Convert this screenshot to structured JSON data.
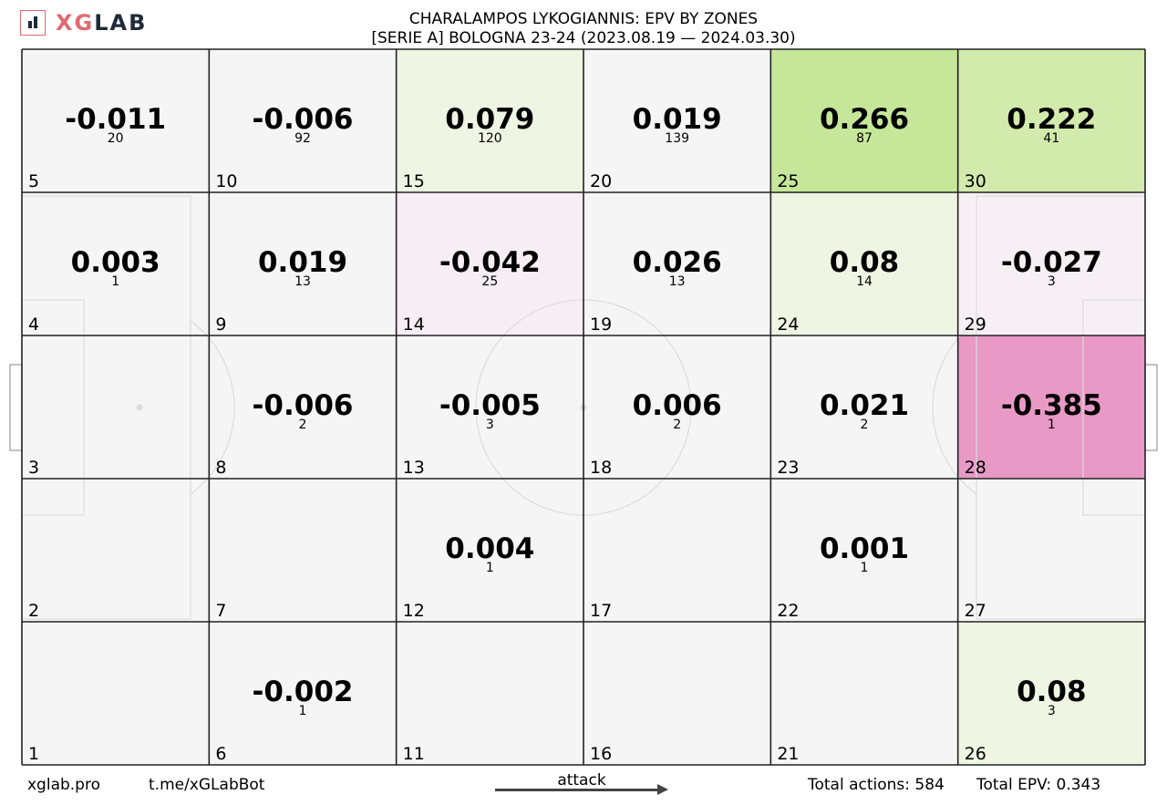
{
  "header": {
    "logo": {
      "xg": "XG",
      "lab": "LAB"
    },
    "title_line1": "CHARALAMPOS LYKOGIANNIS: EPV BY ZONES",
    "title_line2": "[SERIE A] BOLOGNA 23-24 (2023.08.19 — 2024.03.30)"
  },
  "footer": {
    "site": "xglab.pro",
    "bot": "t.me/xGLabBot",
    "attack_label": "attack",
    "total_actions": "Total actions: 584",
    "total_epv": "Total EPV: 0.343"
  },
  "colors": {
    "neutral": "#f5f5f5",
    "pale_green": "#eef5e2",
    "light_green": "#d2ebac",
    "green": "#c6e79a",
    "pale_pink": "#f7eef5",
    "pale_pink2": "#f6f0f5",
    "pink": "#e899c6",
    "grid_line": "#222222",
    "pitch_line": "#dcdcdc"
  },
  "chart_data": {
    "type": "heatmap",
    "title": "CHARALAMPOS LYKOGIANNIS: EPV BY ZONES",
    "subtitle": "[SERIE A] BOLOGNA 23-24 (2023.08.19 — 2024.03.30)",
    "columns": 6,
    "rows": 5,
    "zones": [
      {
        "zone": 5,
        "epv": "-0.011",
        "count": "20",
        "color": "neutral"
      },
      {
        "zone": 10,
        "epv": "-0.006",
        "count": "92",
        "color": "neutral"
      },
      {
        "zone": 15,
        "epv": "0.079",
        "count": "120",
        "color": "pale_green"
      },
      {
        "zone": 20,
        "epv": "0.019",
        "count": "139",
        "color": "neutral"
      },
      {
        "zone": 25,
        "epv": "0.266",
        "count": "87",
        "color": "green"
      },
      {
        "zone": 30,
        "epv": "0.222",
        "count": "41",
        "color": "light_green"
      },
      {
        "zone": 4,
        "epv": "0.003",
        "count": "1",
        "color": "neutral"
      },
      {
        "zone": 9,
        "epv": "0.019",
        "count": "13",
        "color": "neutral"
      },
      {
        "zone": 14,
        "epv": "-0.042",
        "count": "25",
        "color": "pale_pink"
      },
      {
        "zone": 19,
        "epv": "0.026",
        "count": "13",
        "color": "neutral"
      },
      {
        "zone": 24,
        "epv": "0.08",
        "count": "14",
        "color": "pale_green"
      },
      {
        "zone": 29,
        "epv": "-0.027",
        "count": "3",
        "color": "pale_pink2"
      },
      {
        "zone": 3,
        "epv": "",
        "count": "",
        "color": "neutral"
      },
      {
        "zone": 8,
        "epv": "-0.006",
        "count": "2",
        "color": "neutral"
      },
      {
        "zone": 13,
        "epv": "-0.005",
        "count": "3",
        "color": "neutral"
      },
      {
        "zone": 18,
        "epv": "0.006",
        "count": "2",
        "color": "neutral"
      },
      {
        "zone": 23,
        "epv": "0.021",
        "count": "2",
        "color": "neutral"
      },
      {
        "zone": 28,
        "epv": "-0.385",
        "count": "1",
        "color": "pink"
      },
      {
        "zone": 2,
        "epv": "",
        "count": "",
        "color": "neutral"
      },
      {
        "zone": 7,
        "epv": "",
        "count": "",
        "color": "neutral"
      },
      {
        "zone": 12,
        "epv": "0.004",
        "count": "1",
        "color": "neutral"
      },
      {
        "zone": 17,
        "epv": "",
        "count": "",
        "color": "neutral"
      },
      {
        "zone": 22,
        "epv": "0.001",
        "count": "1",
        "color": "neutral"
      },
      {
        "zone": 27,
        "epv": "",
        "count": "",
        "color": "neutral"
      },
      {
        "zone": 1,
        "epv": "",
        "count": "",
        "color": "neutral"
      },
      {
        "zone": 6,
        "epv": "-0.002",
        "count": "1",
        "color": "neutral"
      },
      {
        "zone": 11,
        "epv": "",
        "count": "",
        "color": "neutral"
      },
      {
        "zone": 16,
        "epv": "",
        "count": "",
        "color": "neutral"
      },
      {
        "zone": 21,
        "epv": "",
        "count": "",
        "color": "neutral"
      },
      {
        "zone": 26,
        "epv": "0.08",
        "count": "3",
        "color": "pale_green"
      }
    ]
  }
}
